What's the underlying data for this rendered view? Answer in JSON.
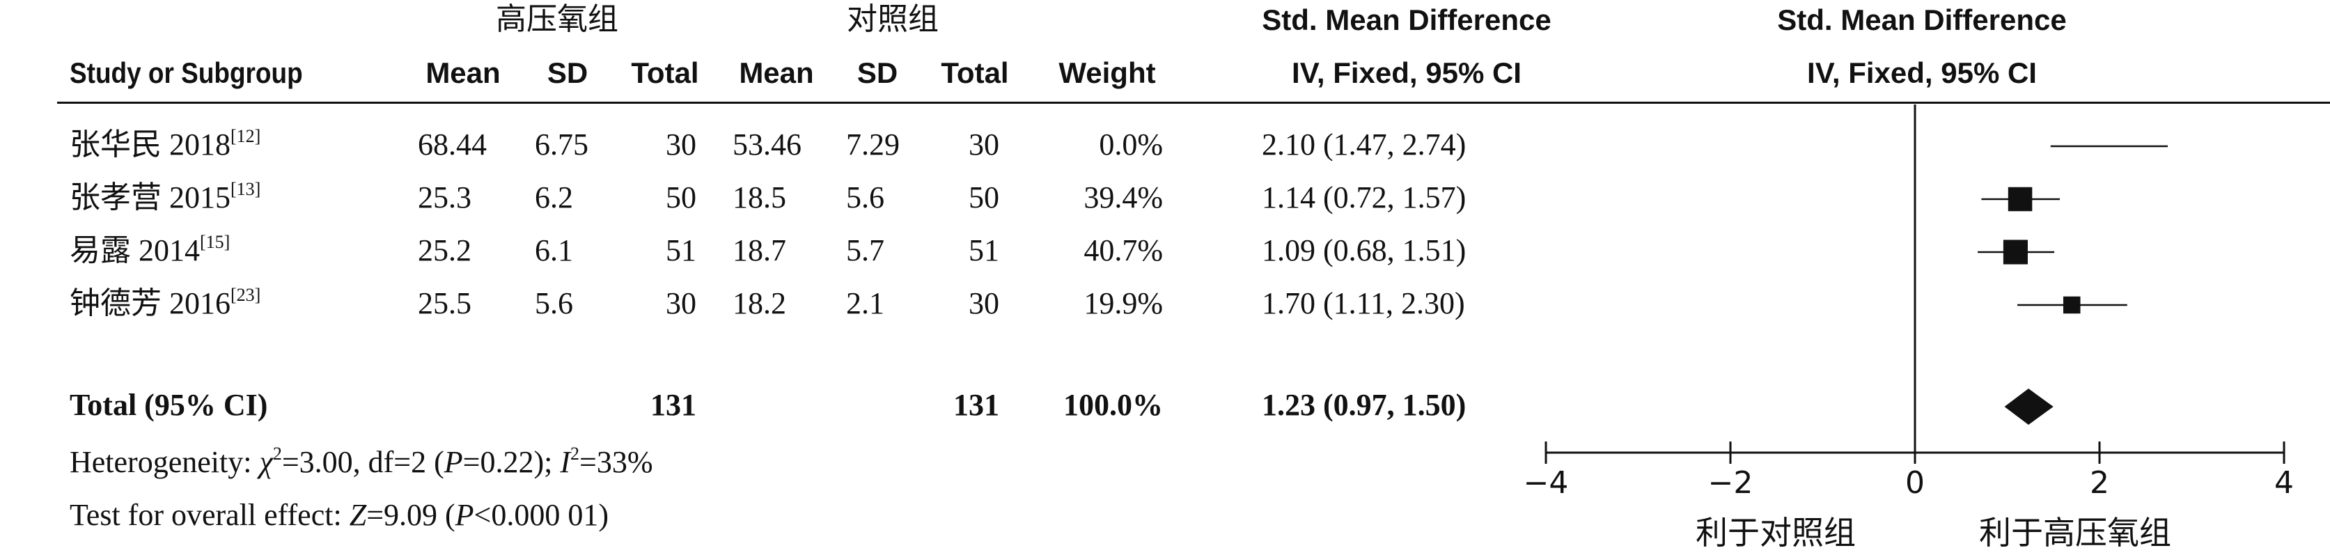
{
  "groups": {
    "experimental": "高压氧组",
    "control": "对照组"
  },
  "headers": {
    "study": "Study or Subgroup",
    "mean_e": "Mean",
    "sd_e": "SD",
    "total_e": "Total",
    "mean_c": "Mean",
    "sd_c": "SD",
    "total_c": "Total",
    "weight": "Weight",
    "effect_title": "Std. Mean Difference",
    "effect_method": "IV, Fixed, 95% CI",
    "plot_title": "Std. Mean Difference",
    "plot_method": "IV, Fixed, 95% CI"
  },
  "studies": [
    {
      "name": "张华民 2018",
      "ref": "[12]",
      "mean_e": "68.44",
      "sd_e": "6.75",
      "total_e": "30",
      "mean_c": "53.46",
      "sd_c": "7.29",
      "total_c": "30",
      "weight": "0.0%",
      "ci_text": "2.10 (1.47, 2.74)"
    },
    {
      "name": "张孝营 2015",
      "ref": "[13]",
      "mean_e": "25.3",
      "sd_e": "6.2",
      "total_e": "50",
      "mean_c": "18.5",
      "sd_c": "5.6",
      "total_c": "50",
      "weight": "39.4%",
      "ci_text": "1.14 (0.72, 1.57)"
    },
    {
      "name": "易露 2014",
      "ref": "[15]",
      "mean_e": "25.2",
      "sd_e": "6.1",
      "total_e": "51",
      "mean_c": "18.7",
      "sd_c": "5.7",
      "total_c": "51",
      "weight": "40.7%",
      "ci_text": "1.09 (0.68, 1.51)"
    },
    {
      "name": "钟德芳 2016",
      "ref": "[23]",
      "mean_e": "25.5",
      "sd_e": "5.6",
      "total_e": "30",
      "mean_c": "18.2",
      "sd_c": "2.1",
      "total_c": "30",
      "weight": "19.9%",
      "ci_text": "1.70 (1.11, 2.30)"
    }
  ],
  "total": {
    "label": "Total (95% CI)",
    "total_e": "131",
    "total_c": "131",
    "weight": "100.0%",
    "ci_text": "1.23 (0.97, 1.50)"
  },
  "heterogeneity": {
    "prefix": "Heterogeneity: ",
    "chi_sym": "χ",
    "chi_rest": "=3.00, df=2 (",
    "p_sym": "P",
    "p_rest": "=0.22); ",
    "i_sym": "I",
    "i_rest": "=33%"
  },
  "overall": {
    "prefix": "Test for overall effect: ",
    "z_sym": "Z",
    "z_rest": "=9.09 (",
    "p_sym": "P",
    "p_rest": "<0.000 01)"
  },
  "favours": {
    "left": "利于对照组",
    "right": "利于高压氧组"
  },
  "chart_data": {
    "type": "scatter",
    "xlim": [
      -4,
      4
    ],
    "x_ticks": [
      -4,
      -2,
      0,
      2,
      4
    ],
    "tick_labels": [
      "−4",
      "−2",
      "0",
      "2",
      "4"
    ],
    "null_line": 0,
    "series": [
      {
        "values": [
          {
            "study": "张华民 2018",
            "est": 2.1,
            "lo": 1.47,
            "hi": 2.74,
            "weight": 0.0
          },
          {
            "study": "张孝营 2015",
            "est": 1.14,
            "lo": 0.72,
            "hi": 1.57,
            "weight": 39.4
          },
          {
            "study": "易露 2014",
            "est": 1.09,
            "lo": 0.68,
            "hi": 1.51,
            "weight": 40.7
          },
          {
            "study": "钟德芳 2016",
            "est": 1.7,
            "lo": 1.11,
            "hi": 2.3,
            "weight": 19.9
          }
        ]
      }
    ],
    "pooled": {
      "est": 1.23,
      "lo": 0.97,
      "hi": 1.5
    }
  }
}
